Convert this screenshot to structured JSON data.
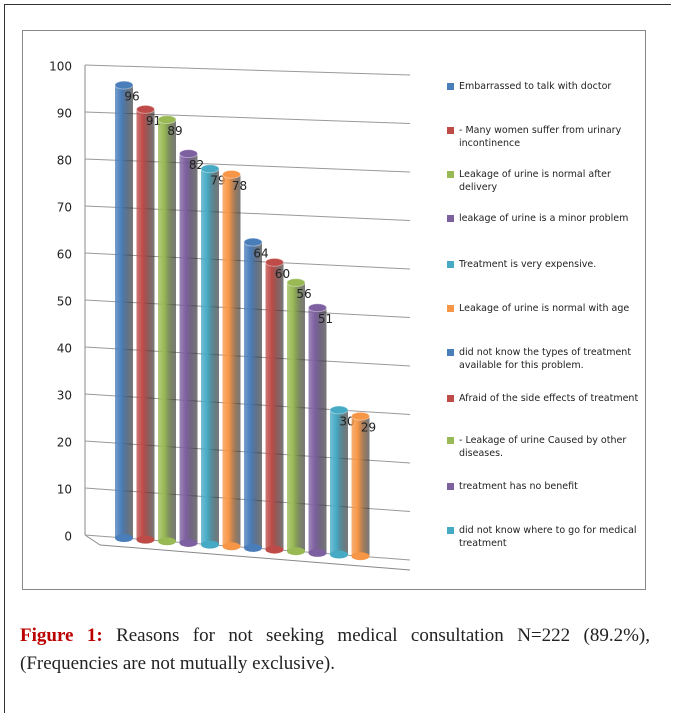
{
  "chart_data": {
    "type": "bar",
    "categories": [
      "Embarrassed to talk with doctor",
      " - Many women suffer from urinary incontinence",
      "Leakage of urine is normal after delivery",
      "leakage of urine is a minor problem",
      "Treatment is very expensive.",
      "Leakage of urine is normal with age",
      "did not  know the types of treatment available for this problem.",
      "Afraid of the side effects of treatment",
      " - Leakage of urine Caused by other diseases.",
      "treatment has no benefit",
      "did not know where to go for medical treatment",
      null
    ],
    "values": [
      96,
      91,
      89,
      82,
      79,
      78,
      64,
      60,
      56,
      51,
      30,
      29
    ],
    "colors": [
      "#4a7ebb",
      "#be4b48",
      "#98b954",
      "#7d60a0",
      "#46aac5",
      "#f79646",
      "#4a7ebb",
      "#be4b48",
      "#98b954",
      "#7d60a0",
      "#46aac5",
      "#f79646"
    ],
    "ylim": [
      0,
      100
    ],
    "yticks": [
      0,
      10,
      20,
      30,
      40,
      50,
      60,
      70,
      80,
      90,
      100
    ],
    "grid": true
  },
  "caption": {
    "label": "Figure 1:",
    "text": "Reasons for not seeking medical consultation N=222 (89.2%), (Frequencies are not mutually exclusive)."
  }
}
